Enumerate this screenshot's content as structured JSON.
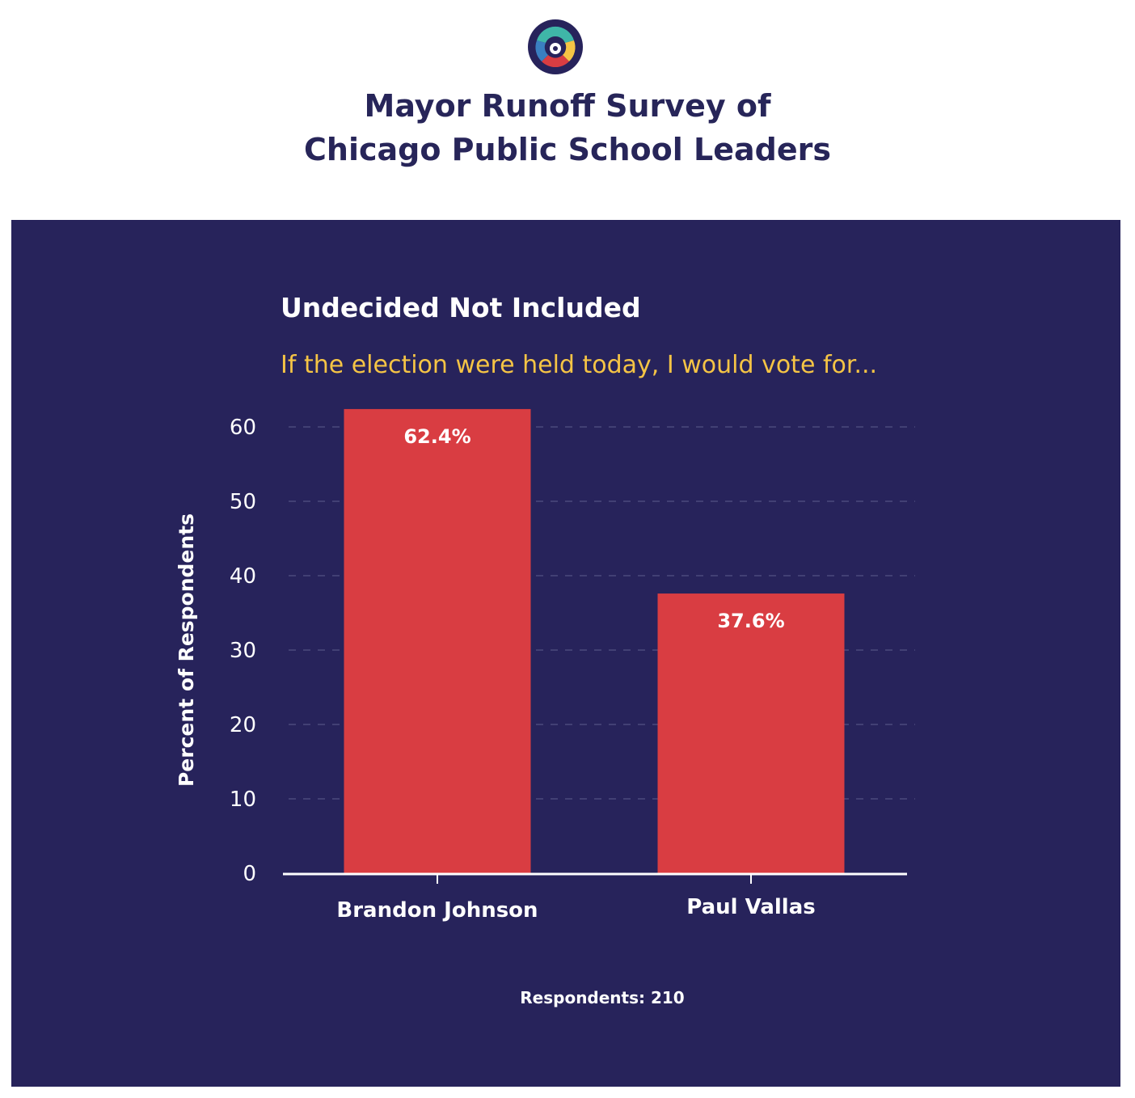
{
  "header": {
    "title_line1": "Mayor Runoff Survey of",
    "title_line2": "Chicago Public School Leaders",
    "logo_icon": "organization-logo-icon"
  },
  "colors": {
    "title": "#272559",
    "panel": "#27235b",
    "bar": "#d93d42",
    "subtitle": "#f5c445",
    "text": "#ffffff",
    "grid": "#4c4a7c"
  },
  "chart_data": {
    "type": "bar",
    "title": "Undecided Not Included",
    "subtitle": "If the election were held today, I would vote for...",
    "categories": [
      "Brandon Johnson",
      "Paul Vallas"
    ],
    "values": [
      62.4,
      37.6
    ],
    "data_labels": [
      "62.4%",
      "37.6%"
    ],
    "xlabel": "",
    "ylabel": "Percent of Respondents",
    "ylim": [
      0,
      60
    ],
    "yticks": [
      0,
      10,
      20,
      30,
      40,
      50,
      60
    ],
    "grid": "dashed horizontal",
    "legend": "none",
    "footnote": "Respondents: 210"
  }
}
